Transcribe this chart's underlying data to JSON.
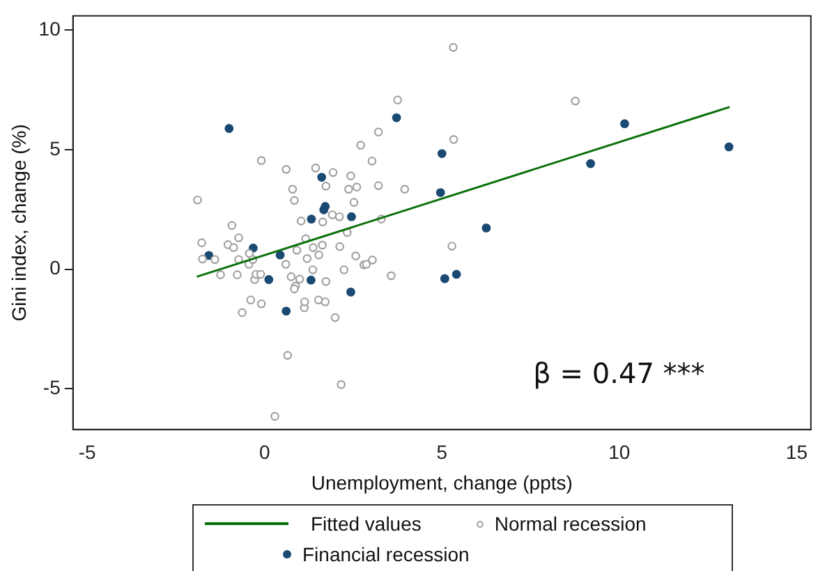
{
  "chart_data": {
    "type": "scatter",
    "xlabel": "Unemployment, change (ppts)",
    "ylabel": "Gini index, change (%)",
    "xlim": [
      -5.4,
      15.4
    ],
    "xticks": [
      -5,
      0,
      5,
      10,
      15
    ],
    "ylim": [
      -6.7,
      10.6
    ],
    "yticks": [
      -5,
      0,
      5,
      10
    ],
    "grid": false,
    "legend": "bottom",
    "marker": "circle",
    "annotations": [
      "β = 0.47 ***"
    ],
    "series": [
      {
        "name": "Fitted values",
        "type": "line",
        "marker": "none",
        "color": "#0a700a",
        "x": [
          -1.91,
          13.11
        ],
        "values": [
          -0.31,
          6.79
        ]
      },
      {
        "name": "Normal recession",
        "type": "scatter",
        "color": "#a0a0a0",
        "x": [
          -1.89,
          -1.77,
          -1.75,
          -1.4,
          -1.24,
          -0.92,
          -1.03,
          -0.87,
          -0.73,
          -0.73,
          -0.77,
          -0.63,
          -0.39,
          -0.43,
          -0.44,
          -0.33,
          -0.28,
          -0.24,
          -0.11,
          -0.09,
          -0.09,
          0.61,
          0.6,
          0.75,
          0.79,
          0.84,
          0.91,
          0.87,
          0.84,
          0.99,
          1.03,
          1.12,
          1.13,
          1.16,
          1.2,
          1.36,
          1.37,
          1.44,
          1.53,
          1.63,
          1.64,
          1.73,
          1.52,
          1.71,
          1.73,
          1.93,
          1.91,
          2.11,
          1.99,
          2.24,
          2.12,
          2.33,
          2.37,
          2.43,
          2.52,
          2.6,
          2.57,
          2.71,
          2.8,
          2.87,
          3.04,
          3.03,
          3.21,
          3.21,
          3.29,
          3.57,
          3.75,
          3.95,
          0.65,
          2.16,
          0.29,
          5.32,
          5.33,
          5.28,
          8.76
        ],
        "values": [
          2.9,
          1.11,
          0.43,
          0.41,
          -0.23,
          1.83,
          1.03,
          0.91,
          1.32,
          0.41,
          -0.23,
          -1.81,
          -1.28,
          0.66,
          0.21,
          0.41,
          -0.43,
          -0.21,
          -0.21,
          -1.44,
          4.55,
          4.18,
          0.21,
          -0.31,
          3.35,
          2.88,
          0.8,
          -0.7,
          -0.82,
          -0.41,
          2.02,
          -1.61,
          -1.36,
          1.28,
          0.45,
          -0.02,
          0.91,
          4.24,
          0.6,
          1.01,
          1.98,
          -0.51,
          -1.28,
          -1.36,
          3.48,
          4.05,
          2.28,
          2.2,
          -2.02,
          -0.02,
          0.95,
          1.54,
          3.35,
          3.91,
          2.8,
          3.44,
          0.56,
          5.19,
          0.19,
          0.21,
          0.39,
          4.53,
          5.74,
          3.5,
          2.1,
          -0.27,
          7.08,
          3.35,
          -3.6,
          -4.82,
          -6.15,
          9.28,
          5.43,
          0.97,
          7.04
        ]
      },
      {
        "name": "Financial recession",
        "type": "scatter",
        "color": "#1a4a72",
        "x": [
          -1.0,
          -1.57,
          -0.32,
          0.12,
          0.44,
          0.61,
          1.32,
          1.31,
          1.61,
          1.67,
          1.71,
          2.45,
          2.43,
          3.72,
          5.0,
          4.96,
          6.25,
          5.08,
          5.41,
          9.19,
          10.15,
          13.09
        ],
        "values": [
          5.89,
          0.58,
          0.89,
          -0.43,
          0.6,
          -1.75,
          2.1,
          -0.45,
          3.85,
          2.49,
          2.63,
          2.2,
          -0.95,
          6.34,
          4.84,
          3.21,
          1.73,
          -0.39,
          -0.21,
          4.42,
          6.09,
          5.12
        ]
      }
    ]
  }
}
